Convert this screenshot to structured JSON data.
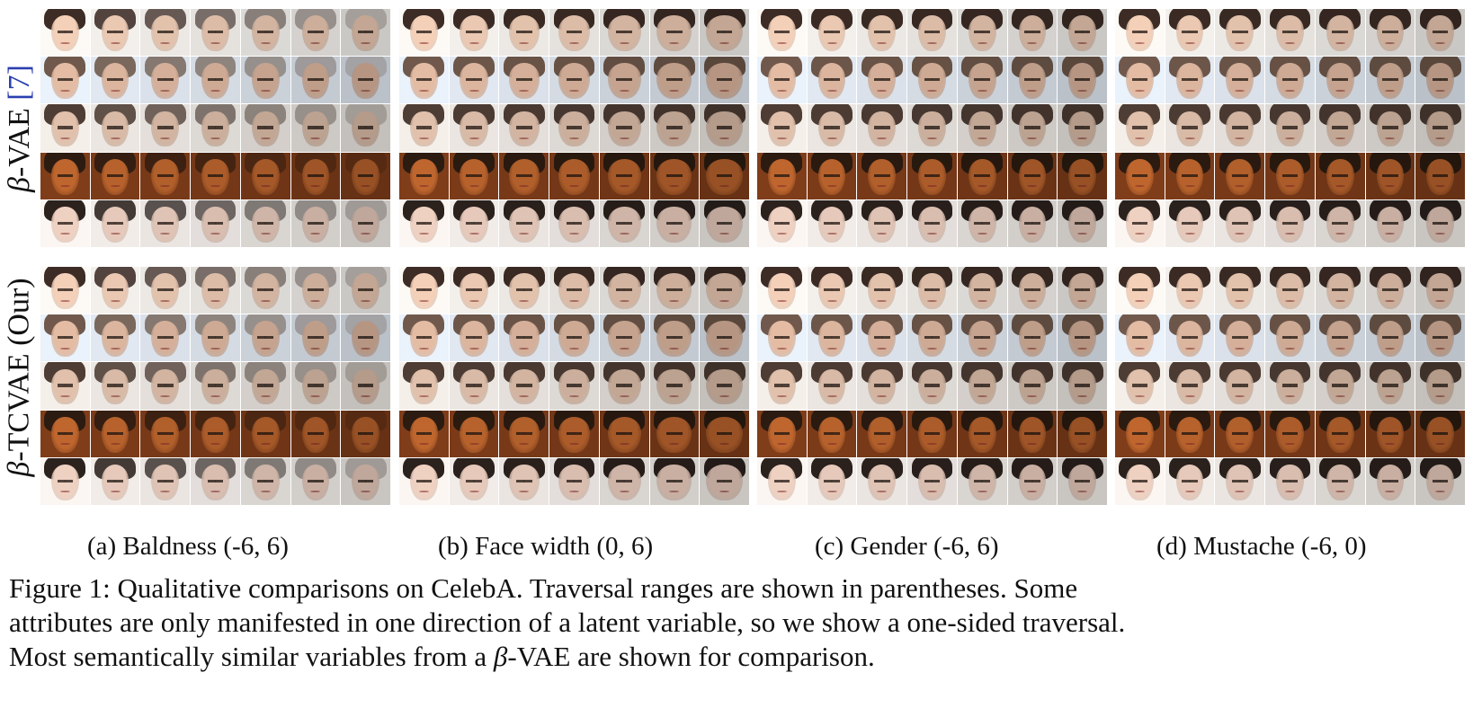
{
  "row_labels": {
    "top": {
      "beta": "β",
      "text": "-VAE ",
      "ref": "[7]"
    },
    "bottom": {
      "beta": "β",
      "text": "-TCVAE (Our)"
    }
  },
  "panels": [
    {
      "caption": "(a) Baldness (-6, 6)"
    },
    {
      "caption": "(b) Face width (0, 6)"
    },
    {
      "caption": "(c) Gender (-6, 6)"
    },
    {
      "caption": "(d) Mustache (-6, 0)"
    }
  ],
  "figure_caption": {
    "line1": "Figure 1: Qualitative comparisons on CelebA. Traversal ranges are shown in parentheses. Some",
    "line2": "attributes are only manifested in one direction of a latent variable, so we show a one-sided traversal.",
    "line3_prefix": "Most semantically similar variables from a ",
    "line3_beta": "β",
    "line3_suffix": "-VAE are shown for comparison."
  },
  "colors": {
    "text": "#111111",
    "citation": "#2a3fb0"
  }
}
